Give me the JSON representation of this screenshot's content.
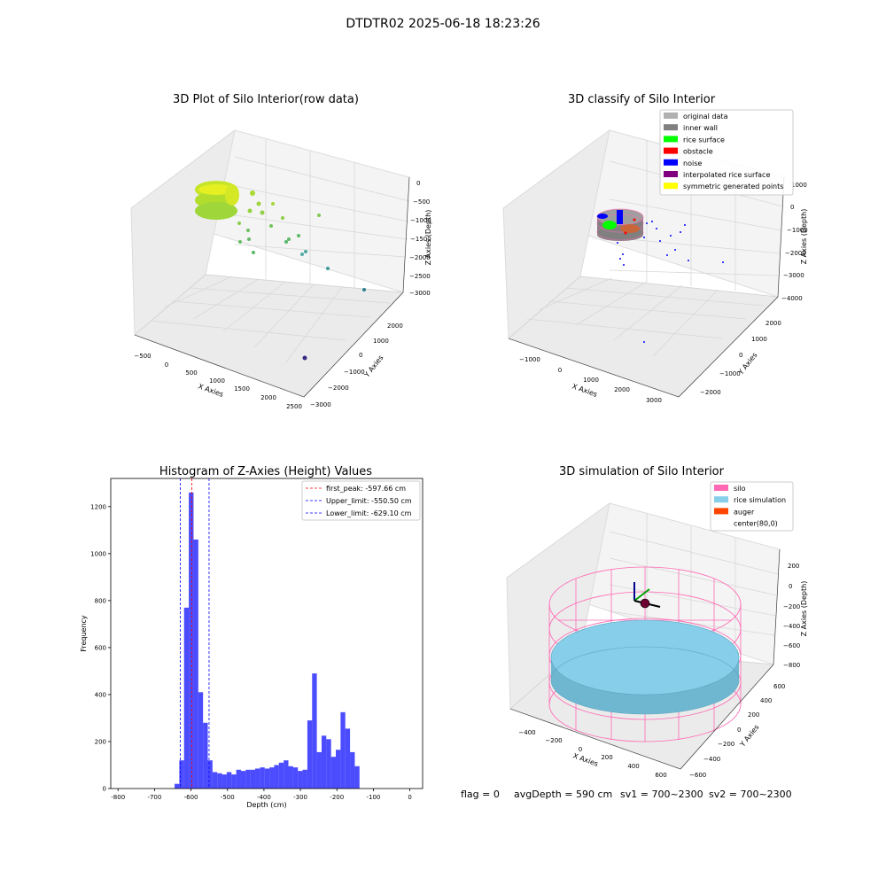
{
  "figure": {
    "suptitle": "DTDTR02 2025-06-18 18:23:26",
    "footer": {
      "flag": "flag = 0",
      "avg_depth": "avgDepth = 590 cm",
      "sv1": "sv1 = 700~2300",
      "sv2": "sv2 = 700~2300"
    }
  },
  "panels": {
    "raw3d": {
      "title": "3D Plot of Silo Interior(row data)",
      "xlabel": "X Axies",
      "ylabel": "Y Axies",
      "zlabel": "Z Axies (Depth)",
      "xticks": [
        "−500",
        "0",
        "500",
        "1000",
        "1500",
        "2000",
        "2500"
      ],
      "yticks": [
        "−3000",
        "−2000",
        "−1000",
        "0",
        "1000",
        "2000"
      ],
      "zticks": [
        "0",
        "−500",
        "−1000",
        "−1500",
        "−2000",
        "−2500",
        "−3000"
      ]
    },
    "classify3d": {
      "title": "3D classify of Silo Interior",
      "xlabel": "X Axies",
      "ylabel": "Y Axies",
      "zlabel": "Z Axies (Depth)",
      "xticks": [
        "−1000",
        "0",
        "1000",
        "2000",
        "3000"
      ],
      "yticks": [
        "−2000",
        "−1000",
        "0",
        "1000",
        "2000"
      ],
      "zticks": [
        "1000",
        "0",
        "−1000",
        "−2000",
        "−3000",
        "−4000"
      ],
      "legend": [
        {
          "label": "original data",
          "color": "#b0b0b0"
        },
        {
          "label": "inner wall",
          "color": "#808080"
        },
        {
          "label": "rice surface",
          "color": "#00ff00"
        },
        {
          "label": "obstacle",
          "color": "#ff0000"
        },
        {
          "label": "noise",
          "color": "#0000ff"
        },
        {
          "label": "interpolated rice surface",
          "color": "#800080"
        },
        {
          "label": "symmetric generated points",
          "color": "#ffff00"
        }
      ]
    },
    "sim3d": {
      "title": "3D simulation of Silo Interior",
      "xlabel": "X Axies",
      "ylabel": "Y Axies",
      "zlabel": "Z Axies (Depth)",
      "xticks": [
        "−400",
        "−200",
        "0",
        "200",
        "400",
        "600"
      ],
      "yticks": [
        "−600",
        "−400",
        "−200",
        "0",
        "200",
        "400",
        "600"
      ],
      "zticks": [
        "200",
        "0",
        "−200",
        "−400",
        "−600",
        "−800"
      ],
      "legend": [
        {
          "label": "silo",
          "color": "#ff69b4"
        },
        {
          "label": "rice simulation",
          "color": "#87ceeb"
        },
        {
          "label": "auger",
          "color": "#ff4500"
        },
        {
          "label": "center(80,0)",
          "color": ""
        }
      ]
    }
  },
  "chart_data": {
    "type": "bar",
    "title": "Histogram of Z-Axies (Height) Values",
    "xlabel": "Depth (cm)",
    "ylabel": "Frequency",
    "xlim": [
      -820,
      35
    ],
    "ylim": [
      0,
      1320
    ],
    "xticks": [
      -800,
      -700,
      -600,
      -500,
      -400,
      -300,
      -200,
      -100,
      0
    ],
    "yticks": [
      0,
      200,
      400,
      600,
      800,
      1000,
      1200
    ],
    "bar_color": "#0000ff",
    "bin_start": -645,
    "bin_width": 13,
    "values": [
      20,
      120,
      770,
      1260,
      1060,
      410,
      280,
      120,
      70,
      65,
      60,
      70,
      60,
      80,
      75,
      80,
      80,
      85,
      90,
      85,
      90,
      100,
      110,
      120,
      95,
      90,
      75,
      80,
      290,
      490,
      155,
      225,
      210,
      135,
      165,
      325,
      255,
      155,
      95
    ],
    "vlines": [
      {
        "label": "first_peak: -597.66 cm",
        "x": -597.66,
        "color": "#ff0000"
      },
      {
        "label": "Upper_limit: -550.50 cm",
        "x": -550.5,
        "color": "#0000ff"
      },
      {
        "label": "Lower_limit: -629.10 cm",
        "x": -629.1,
        "color": "#0000ff"
      }
    ],
    "legend_position": "top-right"
  }
}
